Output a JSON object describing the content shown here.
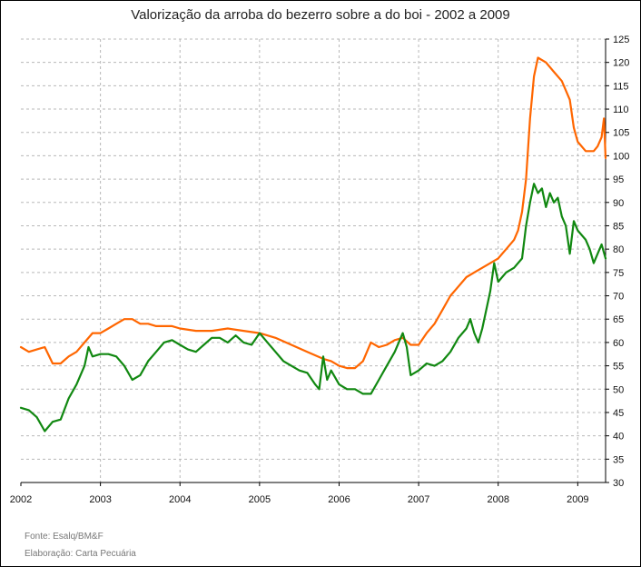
{
  "chart_data": {
    "type": "line",
    "title": "Valorização da arroba do bezerro sobre a do boi - 2002 a 2009",
    "xlabel": "",
    "ylabel": "",
    "x_ticks": [
      "2002",
      "2003",
      "2004",
      "2005",
      "2006",
      "2007",
      "2008",
      "2009"
    ],
    "y_ticks": [
      30,
      35,
      40,
      45,
      50,
      55,
      60,
      65,
      70,
      75,
      80,
      85,
      90,
      95,
      100,
      105,
      110,
      115,
      120,
      125
    ],
    "xlim": [
      2002.0,
      2009.35
    ],
    "ylim": [
      30,
      125
    ],
    "grid": true,
    "y_axis_position": "right",
    "series": [
      {
        "color": "#ff6600",
        "points": [
          [
            2002.0,
            59
          ],
          [
            2002.1,
            58
          ],
          [
            2002.2,
            58.5
          ],
          [
            2002.3,
            59
          ],
          [
            2002.4,
            55.5
          ],
          [
            2002.5,
            55.5
          ],
          [
            2002.6,
            57
          ],
          [
            2002.7,
            58
          ],
          [
            2002.8,
            60
          ],
          [
            2002.9,
            62
          ],
          [
            2003.0,
            62
          ],
          [
            2003.1,
            63
          ],
          [
            2003.2,
            64
          ],
          [
            2003.3,
            65
          ],
          [
            2003.4,
            65
          ],
          [
            2003.5,
            64
          ],
          [
            2003.6,
            64
          ],
          [
            2003.7,
            63.5
          ],
          [
            2003.8,
            63.5
          ],
          [
            2003.9,
            63.5
          ],
          [
            2004.0,
            63
          ],
          [
            2004.2,
            62.5
          ],
          [
            2004.4,
            62.5
          ],
          [
            2004.6,
            63
          ],
          [
            2004.8,
            62.5
          ],
          [
            2005.0,
            62
          ],
          [
            2005.2,
            61
          ],
          [
            2005.4,
            59.5
          ],
          [
            2005.6,
            58
          ],
          [
            2005.8,
            56.5
          ],
          [
            2005.9,
            56
          ],
          [
            2006.0,
            55
          ],
          [
            2006.1,
            54.5
          ],
          [
            2006.2,
            54.5
          ],
          [
            2006.3,
            56
          ],
          [
            2006.4,
            60
          ],
          [
            2006.5,
            59
          ],
          [
            2006.6,
            59.5
          ],
          [
            2006.7,
            60.5
          ],
          [
            2006.8,
            61
          ],
          [
            2006.9,
            59.5
          ],
          [
            2007.0,
            59.5
          ],
          [
            2007.1,
            62
          ],
          [
            2007.2,
            64
          ],
          [
            2007.3,
            67
          ],
          [
            2007.4,
            70
          ],
          [
            2007.5,
            72
          ],
          [
            2007.6,
            74
          ],
          [
            2007.7,
            75
          ],
          [
            2007.8,
            76
          ],
          [
            2007.9,
            77
          ],
          [
            2008.0,
            78
          ],
          [
            2008.1,
            80
          ],
          [
            2008.2,
            82
          ],
          [
            2008.25,
            84
          ],
          [
            2008.3,
            88
          ],
          [
            2008.35,
            95
          ],
          [
            2008.4,
            108
          ],
          [
            2008.45,
            117
          ],
          [
            2008.5,
            121
          ],
          [
            2008.6,
            120
          ],
          [
            2008.7,
            118
          ],
          [
            2008.8,
            116
          ],
          [
            2008.9,
            112
          ],
          [
            2008.95,
            106
          ],
          [
            2009.0,
            103
          ],
          [
            2009.1,
            101
          ],
          [
            2009.2,
            101
          ],
          [
            2009.25,
            102
          ],
          [
            2009.3,
            104
          ],
          [
            2009.33,
            108
          ],
          [
            2009.35,
            99.5
          ]
        ]
      },
      {
        "color": "#118811",
        "points": [
          [
            2002.0,
            46
          ],
          [
            2002.1,
            45.5
          ],
          [
            2002.2,
            44
          ],
          [
            2002.3,
            41
          ],
          [
            2002.4,
            43
          ],
          [
            2002.5,
            43.5
          ],
          [
            2002.6,
            48
          ],
          [
            2002.7,
            51
          ],
          [
            2002.8,
            55
          ],
          [
            2002.85,
            59
          ],
          [
            2002.9,
            57
          ],
          [
            2003.0,
            57.5
          ],
          [
            2003.1,
            57.5
          ],
          [
            2003.2,
            57
          ],
          [
            2003.3,
            55
          ],
          [
            2003.4,
            52
          ],
          [
            2003.5,
            53
          ],
          [
            2003.6,
            56
          ],
          [
            2003.7,
            58
          ],
          [
            2003.8,
            60
          ],
          [
            2003.9,
            60.5
          ],
          [
            2004.0,
            59.5
          ],
          [
            2004.1,
            58.5
          ],
          [
            2004.2,
            58
          ],
          [
            2004.3,
            59.5
          ],
          [
            2004.4,
            61
          ],
          [
            2004.5,
            61
          ],
          [
            2004.6,
            60
          ],
          [
            2004.7,
            61.5
          ],
          [
            2004.8,
            60
          ],
          [
            2004.9,
            59.5
          ],
          [
            2005.0,
            62
          ],
          [
            2005.1,
            60
          ],
          [
            2005.2,
            58
          ],
          [
            2005.3,
            56
          ],
          [
            2005.4,
            55
          ],
          [
            2005.5,
            54
          ],
          [
            2005.6,
            53.5
          ],
          [
            2005.7,
            51
          ],
          [
            2005.75,
            50
          ],
          [
            2005.8,
            57
          ],
          [
            2005.85,
            52
          ],
          [
            2005.9,
            54
          ],
          [
            2006.0,
            51
          ],
          [
            2006.1,
            50
          ],
          [
            2006.2,
            50
          ],
          [
            2006.3,
            49
          ],
          [
            2006.4,
            49
          ],
          [
            2006.5,
            52
          ],
          [
            2006.6,
            55
          ],
          [
            2006.7,
            58
          ],
          [
            2006.75,
            60
          ],
          [
            2006.8,
            62
          ],
          [
            2006.85,
            59
          ],
          [
            2006.9,
            53
          ],
          [
            2007.0,
            54
          ],
          [
            2007.1,
            55.5
          ],
          [
            2007.2,
            55
          ],
          [
            2007.3,
            56
          ],
          [
            2007.4,
            58
          ],
          [
            2007.5,
            61
          ],
          [
            2007.6,
            63
          ],
          [
            2007.65,
            65
          ],
          [
            2007.7,
            62
          ],
          [
            2007.75,
            60
          ],
          [
            2007.8,
            63
          ],
          [
            2007.9,
            71
          ],
          [
            2007.95,
            77
          ],
          [
            2008.0,
            73
          ],
          [
            2008.1,
            75
          ],
          [
            2008.2,
            76
          ],
          [
            2008.3,
            78
          ],
          [
            2008.35,
            85
          ],
          [
            2008.4,
            90
          ],
          [
            2008.45,
            94
          ],
          [
            2008.5,
            92
          ],
          [
            2008.55,
            93
          ],
          [
            2008.6,
            89
          ],
          [
            2008.65,
            92
          ],
          [
            2008.7,
            90
          ],
          [
            2008.75,
            91
          ],
          [
            2008.8,
            87
          ],
          [
            2008.85,
            85
          ],
          [
            2008.9,
            79
          ],
          [
            2008.95,
            86
          ],
          [
            2009.0,
            84
          ],
          [
            2009.1,
            82
          ],
          [
            2009.15,
            80
          ],
          [
            2009.2,
            77
          ],
          [
            2009.25,
            79
          ],
          [
            2009.3,
            81
          ],
          [
            2009.35,
            78
          ]
        ]
      }
    ]
  },
  "footer": {
    "source": "Fonte: Esalq/BM&F",
    "credit": "Elaboração: Carta Pecuária"
  }
}
